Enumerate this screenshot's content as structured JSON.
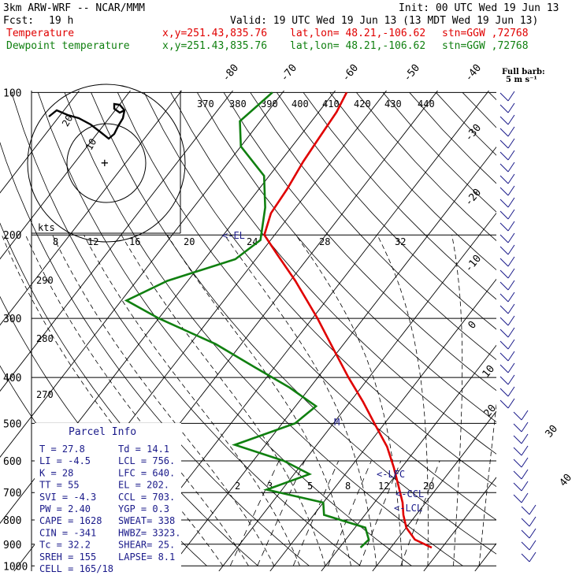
{
  "header": {
    "model": "3km ARW-WRF -- NCAR/MMM",
    "init": "Init: 00 UTC Wed 19 Jun 13",
    "fcst_label": "Fcst:",
    "fcst_value": "19 h",
    "valid": "Valid: 19 UTC Wed 19 Jun 13 (13 MDT Wed 19 Jun 13)",
    "temp_label": "Temperature",
    "dew_label": "Dewpoint temperature",
    "xy": "x,y=251.43,835.76",
    "latlon": "lat,lon= 48.21,-106.62",
    "stn": "stn=GGW ,72768"
  },
  "colors": {
    "temperature": "#e00000",
    "dewpoint": "#108010",
    "info": "#1a1a8a"
  },
  "wind_barb_legend": {
    "line1": "Full barb:",
    "line2": "5 m s⁻¹"
  },
  "hodograph": {
    "ring_labels": [
      "10",
      "20"
    ],
    "units": "kts"
  },
  "mixing_ratio_labels": [
    "2",
    "3",
    "5",
    "8",
    "12",
    "20"
  ],
  "theta_e_labels": [
    "370",
    "380",
    "390",
    "400",
    "410",
    "420",
    "430",
    "440"
  ],
  "lower_theta_labels": [
    "290",
    "280",
    "270"
  ],
  "markers": {
    "el": "<-EL",
    "lfc": "<-LFC",
    "ccl": "<-CCL",
    "lcl": "<-LCL",
    "m": "M"
  },
  "parcel_info": {
    "title": "Parcel Info",
    "rows": [
      [
        "T    =   27.8",
        "Td =  14.1"
      ],
      [
        "LI   =   -4.5",
        "LCL =  756."
      ],
      [
        "K    =     28",
        "LFC =  640."
      ],
      [
        "TT   =     55",
        "EL  =  202."
      ],
      [
        "SVI  =   -4.3",
        "CCL =  703."
      ],
      [
        "PW   =   2.40",
        "YGP =   0.3"
      ],
      [
        "CAPE =   1628",
        "SWEAT=  338"
      ],
      [
        "CIN  =   -341",
        "HWBZ= 3323."
      ],
      [
        "Tc   =   32.2",
        "SHEAR=  25."
      ],
      [
        "SREH =    155",
        "LAPSE=  8.1"
      ]
    ],
    "cell": "CELL = 165/18"
  },
  "chart_data": {
    "type": "line",
    "chart": "skew-T log-p",
    "yaxis_label": "",
    "pressure_levels_hPa": [
      100,
      200,
      300,
      400,
      500,
      600,
      700,
      800,
      900,
      1000
    ],
    "skewed_temperature_labels_C": [
      -80,
      -70,
      -60,
      -50,
      -40,
      -30,
      -20,
      -10,
      0,
      10,
      20,
      30,
      40
    ],
    "hodo_speed_labels_kts": [
      8,
      12,
      16,
      20,
      24,
      28,
      32
    ],
    "series": [
      {
        "name": "Temperature",
        "points": [
          {
            "p": 915,
            "t": 28.0
          },
          {
            "p": 880,
            "t": 23.5
          },
          {
            "p": 830,
            "t": 20.0
          },
          {
            "p": 780,
            "t": 17.5
          },
          {
            "p": 735,
            "t": 15.5
          },
          {
            "p": 680,
            "t": 12.3
          },
          {
            "p": 620,
            "t": 8.5
          },
          {
            "p": 560,
            "t": 4.0
          },
          {
            "p": 500,
            "t": -2.0
          },
          {
            "p": 450,
            "t": -7.5
          },
          {
            "p": 400,
            "t": -14.0
          },
          {
            "p": 350,
            "t": -21.0
          },
          {
            "p": 300,
            "t": -29.0
          },
          {
            "p": 250,
            "t": -39.0
          },
          {
            "p": 220,
            "t": -46.5
          },
          {
            "p": 200,
            "t": -52.0
          },
          {
            "p": 180,
            "t": -54.0
          },
          {
            "p": 160,
            "t": -54.5
          },
          {
            "p": 140,
            "t": -55.5
          },
          {
            "p": 125,
            "t": -56.0
          },
          {
            "p": 110,
            "t": -56.5
          },
          {
            "p": 100,
            "t": -57.5
          }
        ]
      },
      {
        "name": "Dewpoint temperature",
        "points": [
          {
            "p": 915,
            "t": 14.1
          },
          {
            "p": 880,
            "t": 14.5
          },
          {
            "p": 830,
            "t": 12.0
          },
          {
            "p": 780,
            "t": 2.0
          },
          {
            "p": 735,
            "t": 0.0
          },
          {
            "p": 690,
            "t": -13.0
          },
          {
            "p": 640,
            "t": -7.0
          },
          {
            "p": 600,
            "t": -14.0
          },
          {
            "p": 555,
            "t": -26.0
          },
          {
            "p": 500,
            "t": -17.5
          },
          {
            "p": 460,
            "t": -16.0
          },
          {
            "p": 420,
            "t": -24.0
          },
          {
            "p": 380,
            "t": -34.0
          },
          {
            "p": 340,
            "t": -45.0
          },
          {
            "p": 300,
            "t": -60.0
          },
          {
            "p": 275,
            "t": -69.0
          },
          {
            "p": 250,
            "t": -64.0
          },
          {
            "p": 225,
            "t": -54.0
          },
          {
            "p": 205,
            "t": -52.0
          },
          {
            "p": 175,
            "t": -56.0
          },
          {
            "p": 150,
            "t": -61.0
          },
          {
            "p": 130,
            "t": -70.0
          },
          {
            "p": 115,
            "t": -74.0
          },
          {
            "p": 100,
            "t": -72.0
          }
        ]
      }
    ],
    "grid": true,
    "legend": "top-left"
  }
}
